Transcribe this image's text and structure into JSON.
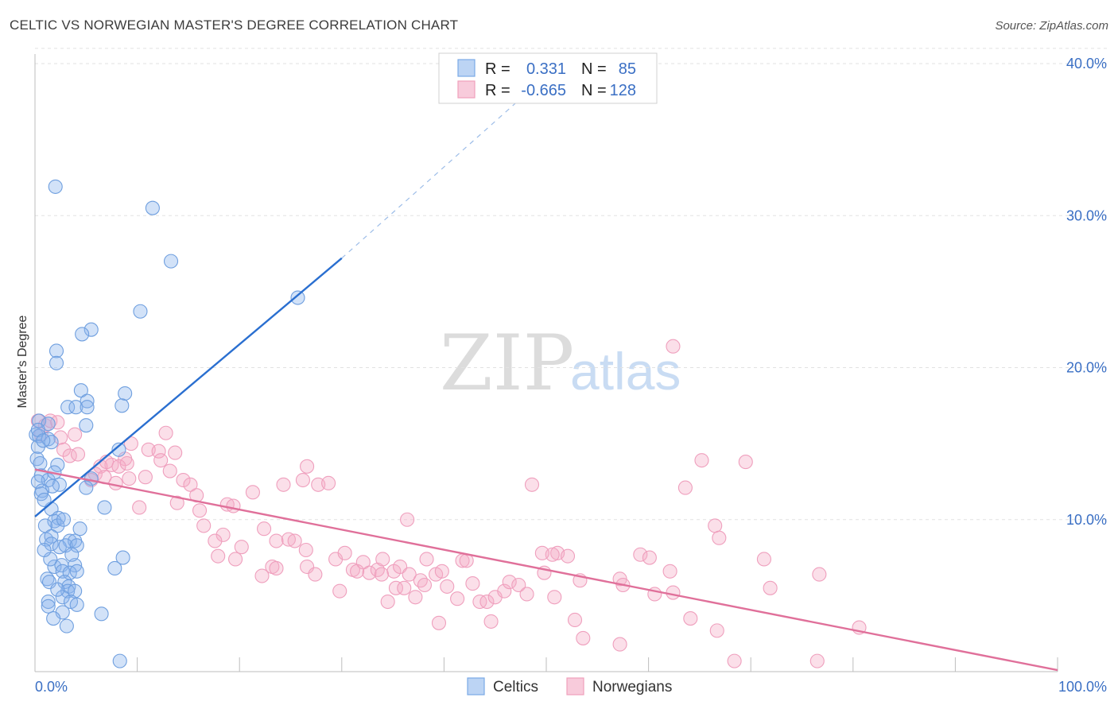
{
  "header": {
    "title": "CELTIC VS NORWEGIAN MASTER'S DEGREE CORRELATION CHART",
    "source": "Source: ZipAtlas.com"
  },
  "watermark": {
    "part1": "ZIP",
    "part2": "atlas"
  },
  "legend": {
    "rows": [
      {
        "r_label": "R =",
        "r_value": "0.331",
        "n_label": "N =",
        "n_value": "85",
        "color": "#7aaae6"
      },
      {
        "r_label": "R =",
        "r_value": "-0.665",
        "n_label": "N =",
        "n_value": "128",
        "color": "#f0a0bc"
      }
    ]
  },
  "bottom_legend": {
    "celtics": "Celtics",
    "norwegians": "Norwegians"
  },
  "chart_data": {
    "type": "scatter",
    "title": "CELTIC VS NORWEGIAN MASTER'S DEGREE CORRELATION CHART",
    "xlabel": "",
    "ylabel": "Master's Degree",
    "xlim": [
      0,
      100
    ],
    "ylim": [
      0,
      41
    ],
    "x_tick_labels": [
      "0.0%",
      "100.0%"
    ],
    "y_ticks": [
      10,
      20,
      30,
      40
    ],
    "y_tick_labels": [
      "10.0%",
      "20.0%",
      "30.0%",
      "40.0%"
    ],
    "grid": true,
    "colors": {
      "celtics": "#7aaae6",
      "norwegians": "#f0a0bc",
      "celtics_line": "#2a6fd0",
      "norwegians_line": "#e0709a"
    },
    "series": [
      {
        "name": "Celtics",
        "R": 0.331,
        "N": 85,
        "trend": {
          "x": [
            0,
            30
          ],
          "y": [
            10.2,
            27.2
          ],
          "dashed_to": [
            50,
            39.2
          ]
        },
        "points": [
          [
            2.0,
            31.9
          ],
          [
            11.5,
            30.5
          ],
          [
            13.3,
            27.0
          ],
          [
            10.3,
            23.7
          ],
          [
            25.7,
            24.6
          ],
          [
            5.5,
            22.5
          ],
          [
            4.6,
            22.2
          ],
          [
            2.1,
            21.1
          ],
          [
            2.1,
            20.3
          ],
          [
            4.5,
            18.5
          ],
          [
            8.8,
            18.3
          ],
          [
            5.1,
            17.8
          ],
          [
            3.2,
            17.4
          ],
          [
            4.0,
            17.4
          ],
          [
            5.1,
            17.4
          ],
          [
            8.5,
            17.5
          ],
          [
            0.4,
            16.5
          ],
          [
            1.3,
            16.3
          ],
          [
            5.0,
            16.2
          ],
          [
            0.1,
            15.6
          ],
          [
            0.4,
            15.5
          ],
          [
            1.3,
            15.3
          ],
          [
            1.6,
            15.1
          ],
          [
            0.3,
            14.8
          ],
          [
            8.2,
            14.6
          ],
          [
            0.2,
            14.0
          ],
          [
            0.5,
            13.7
          ],
          [
            2.2,
            13.6
          ],
          [
            0.6,
            12.9
          ],
          [
            1.3,
            12.6
          ],
          [
            0.3,
            12.5
          ],
          [
            2.4,
            12.3
          ],
          [
            1.7,
            12.2
          ],
          [
            5.5,
            12.7
          ],
          [
            0.7,
            11.9
          ],
          [
            0.6,
            11.7
          ],
          [
            5.0,
            12.1
          ],
          [
            1.6,
            10.7
          ],
          [
            6.8,
            10.8
          ],
          [
            2.3,
            10.1
          ],
          [
            1.9,
            9.9
          ],
          [
            2.2,
            9.6
          ],
          [
            1.0,
            9.6
          ],
          [
            1.1,
            8.7
          ],
          [
            1.6,
            8.9
          ],
          [
            3.4,
            8.6
          ],
          [
            3.9,
            8.6
          ],
          [
            1.6,
            8.4
          ],
          [
            2.4,
            8.2
          ],
          [
            3.0,
            8.3
          ],
          [
            8.6,
            7.5
          ],
          [
            4.1,
            8.3
          ],
          [
            1.9,
            6.9
          ],
          [
            2.6,
            7.0
          ],
          [
            3.9,
            7.0
          ],
          [
            2.7,
            6.6
          ],
          [
            3.4,
            6.5
          ],
          [
            4.1,
            6.6
          ],
          [
            7.8,
            6.8
          ],
          [
            1.2,
            6.1
          ],
          [
            1.4,
            5.9
          ],
          [
            2.9,
            5.9
          ],
          [
            3.3,
            5.6
          ],
          [
            3.2,
            5.3
          ],
          [
            3.9,
            5.3
          ],
          [
            1.3,
            4.6
          ],
          [
            2.7,
            4.9
          ],
          [
            1.3,
            4.3
          ],
          [
            3.5,
            4.6
          ],
          [
            4.1,
            4.4
          ],
          [
            2.7,
            3.9
          ],
          [
            1.8,
            3.5
          ],
          [
            6.5,
            3.8
          ],
          [
            3.1,
            3.0
          ],
          [
            8.3,
            0.7
          ],
          [
            0.3,
            15.9
          ],
          [
            0.8,
            15.2
          ],
          [
            1.9,
            13.1
          ],
          [
            0.9,
            11.3
          ],
          [
            2.8,
            10.0
          ],
          [
            3.6,
            7.7
          ],
          [
            1.5,
            7.4
          ],
          [
            2.2,
            5.4
          ],
          [
            4.4,
            9.4
          ],
          [
            0.9,
            8.0
          ]
        ]
      },
      {
        "name": "Norwegians",
        "R": -0.665,
        "N": 128,
        "trend": {
          "x": [
            0,
            100
          ],
          "y": [
            13.3,
            0.1
          ]
        },
        "points": [
          [
            0.3,
            16.5
          ],
          [
            1.0,
            16.2
          ],
          [
            1.5,
            16.5
          ],
          [
            2.2,
            16.4
          ],
          [
            0.6,
            15.6
          ],
          [
            3.9,
            15.6
          ],
          [
            2.5,
            15.4
          ],
          [
            9.4,
            15.0
          ],
          [
            12.8,
            15.7
          ],
          [
            11.1,
            14.6
          ],
          [
            2.8,
            14.6
          ],
          [
            3.4,
            14.2
          ],
          [
            4.2,
            14.3
          ],
          [
            7.5,
            13.6
          ],
          [
            8.8,
            14.0
          ],
          [
            12.1,
            14.5
          ],
          [
            13.7,
            14.4
          ],
          [
            12.3,
            13.9
          ],
          [
            6.4,
            13.5
          ],
          [
            7.0,
            13.8
          ],
          [
            8.2,
            13.5
          ],
          [
            9.0,
            13.7
          ],
          [
            5.9,
            13.0
          ],
          [
            6.8,
            12.8
          ],
          [
            9.2,
            12.7
          ],
          [
            13.2,
            13.2
          ],
          [
            14.5,
            12.6
          ],
          [
            15.2,
            12.3
          ],
          [
            10.8,
            12.8
          ],
          [
            7.9,
            12.4
          ],
          [
            5.5,
            12.6
          ],
          [
            13.9,
            11.1
          ],
          [
            15.8,
            11.6
          ],
          [
            10.2,
            10.8
          ],
          [
            16.1,
            10.6
          ],
          [
            18.8,
            11.0
          ],
          [
            19.4,
            10.9
          ],
          [
            21.3,
            11.8
          ],
          [
            24.3,
            12.3
          ],
          [
            26.2,
            12.6
          ],
          [
            26.6,
            13.5
          ],
          [
            27.7,
            12.3
          ],
          [
            28.7,
            12.4
          ],
          [
            16.5,
            9.6
          ],
          [
            18.4,
            9.0
          ],
          [
            17.6,
            8.6
          ],
          [
            20.2,
            8.2
          ],
          [
            22.4,
            9.4
          ],
          [
            23.6,
            8.6
          ],
          [
            24.8,
            8.7
          ],
          [
            25.4,
            8.6
          ],
          [
            26.5,
            8.0
          ],
          [
            17.9,
            7.6
          ],
          [
            19.6,
            7.4
          ],
          [
            22.2,
            6.3
          ],
          [
            23.2,
            6.9
          ],
          [
            23.6,
            6.8
          ],
          [
            26.6,
            6.9
          ],
          [
            27.4,
            6.4
          ],
          [
            29.4,
            7.4
          ],
          [
            30.3,
            7.8
          ],
          [
            31.1,
            6.7
          ],
          [
            32.1,
            7.2
          ],
          [
            32.7,
            6.5
          ],
          [
            33.5,
            6.7
          ],
          [
            34.0,
            7.4
          ],
          [
            35.1,
            6.6
          ],
          [
            35.7,
            6.9
          ],
          [
            33.9,
            6.4
          ],
          [
            35.3,
            5.5
          ],
          [
            36.6,
            6.4
          ],
          [
            38.3,
            7.4
          ],
          [
            37.7,
            6.0
          ],
          [
            39.2,
            6.4
          ],
          [
            39.8,
            6.6
          ],
          [
            40.3,
            5.6
          ],
          [
            41.8,
            7.3
          ],
          [
            42.2,
            7.3
          ],
          [
            42.8,
            5.8
          ],
          [
            43.5,
            4.6
          ],
          [
            44.2,
            4.6
          ],
          [
            45.0,
            4.9
          ],
          [
            45.9,
            5.3
          ],
          [
            46.4,
            5.9
          ],
          [
            47.3,
            5.7
          ],
          [
            48.1,
            5.1
          ],
          [
            49.8,
            6.5
          ],
          [
            50.8,
            4.9
          ],
          [
            51.1,
            7.8
          ],
          [
            53.3,
            6.0
          ],
          [
            50.6,
            7.7
          ],
          [
            49.6,
            7.8
          ],
          [
            52.1,
            7.6
          ],
          [
            57.2,
            6.1
          ],
          [
            57.5,
            5.7
          ],
          [
            59.2,
            7.7
          ],
          [
            60.1,
            7.5
          ],
          [
            60.6,
            5.1
          ],
          [
            62.1,
            6.6
          ],
          [
            62.4,
            5.2
          ],
          [
            65.2,
            13.9
          ],
          [
            69.5,
            13.8
          ],
          [
            62.4,
            21.4
          ],
          [
            63.6,
            12.1
          ],
          [
            66.5,
            9.6
          ],
          [
            66.9,
            8.8
          ],
          [
            71.3,
            7.4
          ],
          [
            71.9,
            5.5
          ],
          [
            76.7,
            6.4
          ],
          [
            80.6,
            2.9
          ],
          [
            76.5,
            0.7
          ],
          [
            53.6,
            2.2
          ],
          [
            57.2,
            1.8
          ],
          [
            64.1,
            3.5
          ],
          [
            66.7,
            2.7
          ],
          [
            68.4,
            0.7
          ],
          [
            52.8,
            3.4
          ],
          [
            39.5,
            3.2
          ],
          [
            37.2,
            4.9
          ],
          [
            34.5,
            4.6
          ],
          [
            29.8,
            5.3
          ],
          [
            36.4,
            10.0
          ],
          [
            41.3,
            4.8
          ],
          [
            44.6,
            3.3
          ],
          [
            48.6,
            12.3
          ],
          [
            36.1,
            5.5
          ],
          [
            31.5,
            6.6
          ],
          [
            38.1,
            5.7
          ]
        ]
      }
    ]
  }
}
